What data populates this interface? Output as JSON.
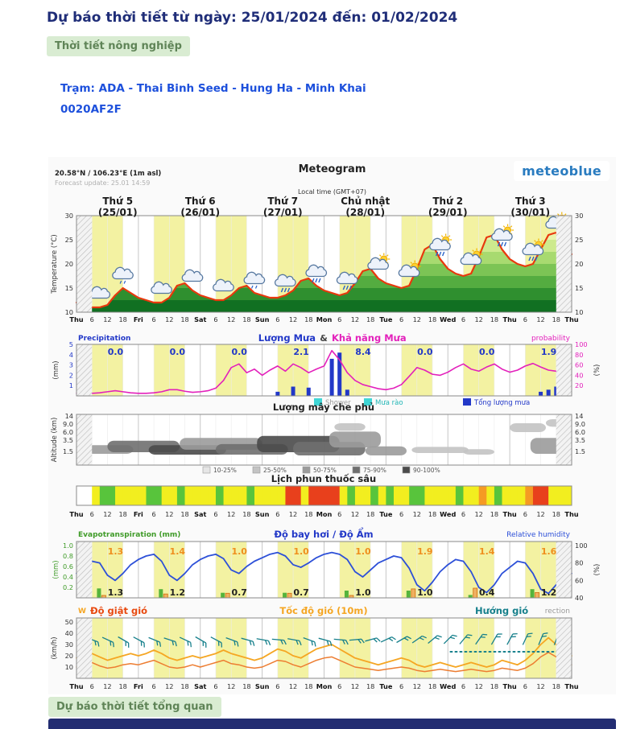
{
  "page": {
    "title": "Dự báo thời tiết từ ngày: 25/01/2024 đến: 01/02/2024",
    "badge_agriculture": "Thời tiết nông nghiệp",
    "station_name": "Trạm: ADA - Thai Binh Seed - Hung Ha - Minh Khai",
    "station_code": "0020AF2F",
    "badge_overview": "Dự báo thời tiết tổng quan",
    "colors": {
      "title_navy": "#1f2d78",
      "station_blue": "#1d50dc",
      "badge_bg": "#d9ecd2",
      "badge_text": "#5f8457",
      "bottom_bar": "#232d72"
    }
  },
  "meteogram": {
    "title": "Meteogram",
    "brand": "meteoblue",
    "coords": "20.58°N / 106.23°E (1m asl)",
    "forecast_update": "Forecast update: 25.01 14:59",
    "local_time": "Local time (GMT+07)",
    "day_headers": [
      {
        "day": "Thứ 5",
        "date": "(25/01)"
      },
      {
        "day": "Thứ 6",
        "date": "(26/01)"
      },
      {
        "day": "Thứ 7",
        "date": "(27/01)"
      },
      {
        "day": "Chủ nhật",
        "date": "(28/01)"
      },
      {
        "day": "Thứ 2",
        "date": "(29/01)"
      },
      {
        "day": "Thứ 3",
        "date": "(30/01)"
      }
    ],
    "x_ticks": [
      "Thu",
      "6",
      "12",
      "18",
      "Fri",
      "6",
      "12",
      "18",
      "Sat",
      "6",
      "12",
      "18",
      "Sun",
      "6",
      "12",
      "18",
      "Mon",
      "6",
      "12",
      "18",
      "Tue",
      "6",
      "12",
      "18",
      "Wed",
      "6",
      "12",
      "18",
      "Thu",
      "6",
      "12",
      "18",
      "Thu"
    ]
  },
  "chart_data": [
    {
      "id": "temperature",
      "type": "area",
      "ylabel": "Temperature (°C)",
      "ylim": [
        10,
        30
      ],
      "yticks": [
        30,
        25,
        20,
        15,
        10
      ],
      "x_hours_step": 3,
      "values": [
        12,
        11.5,
        11,
        11,
        11.5,
        13.5,
        15,
        14,
        13,
        12.5,
        12,
        12,
        13,
        15.5,
        16,
        14.5,
        13.5,
        13,
        12.5,
        12.5,
        13.5,
        15,
        15.5,
        14,
        13.5,
        13,
        13,
        13.5,
        14.5,
        16.5,
        17,
        15.5,
        14.5,
        14,
        13.5,
        14,
        16,
        18.5,
        19,
        17,
        16,
        15.5,
        15,
        15.5,
        19,
        23,
        24,
        21,
        19,
        18,
        17.5,
        18,
        21.5,
        25.5,
        26,
        23,
        21,
        20,
        19.5,
        20,
        23,
        26,
        26.5,
        24,
        22
      ],
      "line_color": "#e8380d",
      "icons": [
        {
          "hour": 9,
          "type": "cloud"
        },
        {
          "hour": 18,
          "type": "cloud-drizzle"
        },
        {
          "hour": 33,
          "type": "cloud"
        },
        {
          "hour": 45,
          "type": "cloud"
        },
        {
          "hour": 57,
          "type": "cloud"
        },
        {
          "hour": 69,
          "type": "cloud-drizzle"
        },
        {
          "hour": 81,
          "type": "cloud-rain"
        },
        {
          "hour": 93,
          "type": "cloud-rain"
        },
        {
          "hour": 105,
          "type": "cloud-rain"
        },
        {
          "hour": 117,
          "type": "sun-cloud"
        },
        {
          "hour": 129,
          "type": "sun-cloud"
        },
        {
          "hour": 141,
          "type": "sun-cloud-rain"
        },
        {
          "hour": 153,
          "type": "sun-cloud"
        },
        {
          "hour": 165,
          "type": "sun-cloud-rain"
        },
        {
          "hour": 177,
          "type": "sun-cloud-rain"
        },
        {
          "hour": 186,
          "type": "sun-cloud"
        }
      ]
    },
    {
      "id": "precipitation",
      "type": "bar+line",
      "label_left": "Precipitation",
      "label_center_1": "Lượng Mưa",
      "label_amp": "&",
      "label_center_2": "Khả năng Mưa",
      "label_right": "probability",
      "ylabel_left": "(mm)",
      "ylabel_right": "(%)",
      "yticks_left": [
        5,
        4,
        3,
        2,
        1
      ],
      "yticks_right": [
        100,
        80,
        60,
        40,
        20
      ],
      "daily_totals": [
        "0.0",
        "0.0",
        "0.0",
        "2.1",
        "8.4",
        "0.0",
        "0.0",
        "1.9"
      ],
      "probability": [
        5,
        5,
        5,
        6,
        8,
        10,
        8,
        6,
        5,
        5,
        6,
        8,
        12,
        12,
        9,
        7,
        8,
        10,
        15,
        30,
        55,
        62,
        45,
        52,
        40,
        50,
        58,
        48,
        62,
        55,
        45,
        52,
        58,
        88,
        70,
        45,
        30,
        22,
        18,
        14,
        12,
        15,
        22,
        38,
        55,
        50,
        42,
        40,
        46,
        55,
        62,
        52,
        48,
        56,
        62,
        52,
        46,
        50,
        58,
        63,
        56,
        50,
        48,
        54,
        56
      ],
      "bars": [
        {
          "i": 26,
          "v": 0.4
        },
        {
          "i": 28,
          "v": 0.9
        },
        {
          "i": 30,
          "v": 0.8
        },
        {
          "i": 33,
          "v": 3.6
        },
        {
          "i": 34,
          "v": 4.2
        },
        {
          "i": 35,
          "v": 0.6
        },
        {
          "i": 60,
          "v": 0.4
        },
        {
          "i": 61,
          "v": 0.6
        },
        {
          "i": 62,
          "v": 0.9
        }
      ],
      "legend": [
        {
          "label": "Shower",
          "box": "#3fd6d6",
          "text": "#9a9a9a"
        },
        {
          "label": "Mưa rào",
          "box": "#3fd6d6",
          "text": "#1fb5b5"
        },
        {
          "label": "Tổng lượng mưa",
          "box": "#2238c8",
          "text": "#2238c8"
        }
      ],
      "colors": {
        "probability_line": "#e320bb",
        "bars": "#2238c8",
        "totals": "#2238c8"
      }
    },
    {
      "id": "clouds",
      "type": "heatmap",
      "title": "Lượng mây che phủ",
      "ylabel": "Altitude (km)",
      "yticks": [
        "14",
        "9.0",
        "6.0",
        "3.5",
        "1.5"
      ],
      "legend": [
        {
          "label": "10-25%",
          "box": "#e6e6e6"
        },
        {
          "label": "25-50%",
          "box": "#c3c3c3"
        },
        {
          "label": "50-75%",
          "box": "#9b9b9b"
        },
        {
          "label": "75-90%",
          "box": "#6f6f6f"
        },
        {
          "label": "90-100%",
          "box": "#4a4a4a"
        }
      ],
      "bands": [
        {
          "h0": 4,
          "h1": 22,
          "a0": 1.2,
          "a1": 2.6,
          "s": 2
        },
        {
          "h0": 12,
          "h1": 40,
          "a0": 1.4,
          "a1": 3.4,
          "s": 3
        },
        {
          "h0": 28,
          "h1": 58,
          "a0": 1.1,
          "a1": 2.6,
          "s": 4
        },
        {
          "h0": 40,
          "h1": 72,
          "a0": 1.8,
          "a1": 4.2,
          "s": 2
        },
        {
          "h0": 54,
          "h1": 82,
          "a0": 1.1,
          "a1": 2.8,
          "s": 3
        },
        {
          "h0": 70,
          "h1": 102,
          "a0": 1.4,
          "a1": 4.8,
          "s": 4
        },
        {
          "h0": 84,
          "h1": 112,
          "a0": 1.0,
          "a1": 3.2,
          "s": 3
        },
        {
          "h0": 98,
          "h1": 118,
          "a0": 2.2,
          "a1": 6.2,
          "s": 2
        },
        {
          "h0": 100,
          "h1": 112,
          "a0": 6.5,
          "a1": 9.5,
          "s": 1
        },
        {
          "h0": 112,
          "h1": 128,
          "a0": 1.0,
          "a1": 2.4,
          "s": 2
        },
        {
          "h0": 130,
          "h1": 152,
          "a0": 1.3,
          "a1": 2.3,
          "s": 1
        },
        {
          "h0": 150,
          "h1": 162,
          "a0": 1.1,
          "a1": 1.9,
          "s": 1
        },
        {
          "h0": 168,
          "h1": 182,
          "a0": 6.0,
          "a1": 9.5,
          "s": 1
        },
        {
          "h0": 176,
          "h1": 190,
          "a0": 1.2,
          "a1": 4.2,
          "s": 2
        },
        {
          "h0": 182,
          "h1": 190,
          "a0": 8,
          "a1": 12,
          "s": 1
        }
      ]
    },
    {
      "id": "spray",
      "type": "strip",
      "title": "Lịch phun thuốc sâu",
      "cells": [
        "w",
        "w",
        "y",
        "g",
        "g",
        "y",
        "y",
        "y",
        "y",
        "g",
        "g",
        "y",
        "y",
        "g",
        "y",
        "y",
        "y",
        "y",
        "g",
        "y",
        "y",
        "y",
        "g",
        "y",
        "y",
        "y",
        "y",
        "r",
        "r",
        "y",
        "r",
        "r",
        "r",
        "r",
        "y",
        "g",
        "y",
        "y",
        "g",
        "y",
        "g",
        "y",
        "y",
        "g",
        "g",
        "y",
        "y",
        "y",
        "y",
        "g",
        "y",
        "y",
        "o",
        "y",
        "g",
        "y",
        "y",
        "y",
        "o",
        "r",
        "r",
        "y",
        "y",
        "y"
      ],
      "palette": {
        "w": "#ffffff",
        "g": "#58c43c",
        "y": "#f2ee1f",
        "o": "#f59a23",
        "r": "#e8401c"
      }
    },
    {
      "id": "evapotranspiration",
      "type": "line",
      "label_left": "Evapotranspiration (mm)",
      "label_center": "Độ bay hơi / Độ Ẩm",
      "label_right": "Relative humidity",
      "ylabel_left": "(mm)",
      "ylabel_right": "(%)",
      "yticks_left": [
        "1.0",
        "0.8",
        "0.6",
        "0.4",
        "0.2"
      ],
      "yticks_right": [
        "100",
        "80",
        "60",
        "40"
      ],
      "daily_evapo": [
        "1.3",
        "1.4",
        "1.0",
        "1.0",
        "1.0",
        "1.9",
        "1.4",
        "1.6"
      ],
      "daily_reference": [
        "1.3",
        "1.2",
        "0.7",
        "0.7",
        "1.0",
        "1.0",
        "0.4",
        "1.2"
      ],
      "humidity": [
        68,
        74,
        82,
        80,
        66,
        60,
        68,
        78,
        84,
        88,
        90,
        82,
        66,
        60,
        68,
        78,
        84,
        88,
        90,
        85,
        72,
        68,
        76,
        82,
        86,
        90,
        92,
        88,
        78,
        75,
        80,
        86,
        90,
        92,
        90,
        84,
        70,
        64,
        72,
        80,
        84,
        88,
        86,
        74,
        55,
        48,
        58,
        70,
        78,
        84,
        82,
        70,
        52,
        46,
        55,
        68,
        75,
        82,
        80,
        68,
        50,
        45,
        55,
        65,
        68
      ],
      "colors": {
        "humidity_line": "#2d50d8",
        "evapo": "#ef8e1e",
        "reference": "#222222",
        "axis_left": "#3f9b28"
      }
    },
    {
      "id": "wind",
      "type": "line",
      "label_w": "W",
      "label_gust": "Độ giật gió",
      "label_speed": "Tốc độ gió (10m)",
      "label_dir": "Hướng gió",
      "label_right": "rection",
      "ylabel_left": "(km/h)",
      "yticks_left": [
        "50",
        "40",
        "30",
        "20",
        "10"
      ],
      "gust": [
        18,
        20,
        22,
        19,
        16,
        18,
        20,
        22,
        20,
        22,
        25,
        22,
        18,
        16,
        18,
        20,
        18,
        20,
        22,
        25,
        22,
        20,
        18,
        16,
        18,
        22,
        26,
        24,
        20,
        18,
        22,
        26,
        28,
        30,
        26,
        22,
        18,
        16,
        14,
        12,
        14,
        16,
        18,
        16,
        12,
        10,
        12,
        14,
        12,
        10,
        12,
        14,
        12,
        10,
        12,
        16,
        14,
        12,
        16,
        22,
        30,
        36,
        30,
        24,
        20
      ],
      "speed": [
        10,
        12,
        14,
        11,
        9,
        10,
        12,
        13,
        12,
        14,
        16,
        13,
        10,
        9,
        10,
        12,
        10,
        12,
        14,
        16,
        13,
        12,
        10,
        9,
        10,
        13,
        16,
        15,
        12,
        10,
        13,
        16,
        18,
        19,
        16,
        13,
        10,
        9,
        8,
        7,
        8,
        9,
        10,
        9,
        7,
        6,
        7,
        8,
        7,
        6,
        7,
        8,
        7,
        6,
        7,
        9,
        8,
        7,
        9,
        13,
        19,
        23,
        19,
        14,
        12
      ],
      "dirs": [
        110,
        115,
        120,
        118,
        112,
        108,
        115,
        120,
        118,
        110,
        105,
        100,
        95,
        100,
        110,
        105,
        95,
        85,
        75,
        65,
        60,
        55,
        50,
        45,
        40,
        35,
        30,
        28,
        25,
        22,
        20
      ],
      "colors": {
        "gust": "#f5a623",
        "speed": "#ed7d31",
        "barbs": "#17808c"
      }
    }
  ]
}
